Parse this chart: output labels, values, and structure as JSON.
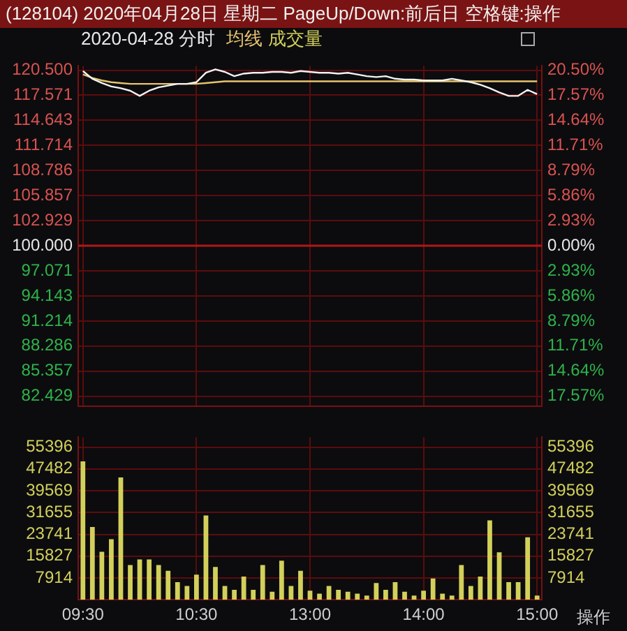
{
  "chart_data": [
    {
      "type": "line",
      "title": "(128104) 2020年04月28日 星期二 PageUp/Down:前后日 空格键:操作",
      "subtitle": "2020-04-28 分时",
      "categories": [
        null,
        null,
        null,
        null,
        null,
        null,
        null,
        null,
        null,
        null,
        null,
        null,
        null,
        null,
        null,
        null,
        null,
        null,
        null,
        null,
        null,
        null,
        null,
        null,
        null,
        null,
        null,
        null,
        null,
        null,
        null,
        null,
        null,
        null,
        null,
        null,
        null,
        null,
        null,
        null,
        null,
        null,
        null,
        null,
        null,
        null,
        null,
        null,
        null
      ],
      "series": [
        {
          "type": "line",
          "color": "#f2f2f2",
          "values": [
            120.4,
            119.5,
            119.0,
            118.6,
            118.4,
            118.1,
            117.5,
            118.1,
            118.5,
            118.7,
            118.9,
            118.9,
            119.1,
            120.2,
            120.6,
            120.3,
            119.8,
            120.1,
            120.2,
            120.2,
            120.3,
            120.3,
            120.2,
            120.4,
            120.3,
            120.2,
            120.2,
            120.1,
            120.2,
            120.0,
            119.8,
            119.7,
            119.8,
            119.5,
            119.4,
            119.4,
            119.3,
            119.3,
            119.3,
            119.5,
            119.3,
            119.1,
            118.8,
            118.4,
            117.9,
            117.5,
            117.5,
            118.2,
            117.7
          ]
        },
        {
          "type": "line",
          "name": "均线",
          "color": "#e6c46e",
          "values": [
            120.0,
            119.6,
            119.3,
            119.1,
            119.0,
            118.9,
            118.9,
            118.9,
            118.9,
            118.9,
            118.9,
            118.9,
            118.9,
            119.0,
            119.1,
            119.2,
            119.2,
            119.2,
            119.2,
            119.2,
            119.2,
            119.2,
            119.2,
            119.2,
            119.2,
            119.2,
            119.2,
            119.2,
            119.2,
            119.2,
            119.2,
            119.2,
            119.2,
            119.2,
            119.2,
            119.2,
            119.2,
            119.2,
            119.2,
            119.2,
            119.2,
            119.2,
            119.2,
            119.2,
            119.2,
            119.2,
            119.2,
            119.2,
            119.2
          ]
        }
      ],
      "ylim": [
        81.3,
        121.0
      ],
      "yticks": [
        {
          "value": 120.5,
          "label": "120.500"
        },
        117.571,
        114.643,
        111.714,
        108.786,
        105.857,
        102.929,
        {
          "value": 100,
          "label": "100.000"
        },
        97.071,
        94.143,
        91.214,
        88.286,
        85.357,
        82.429
      ],
      "y2lim": [
        -18.7,
        21.0
      ],
      "y2ticks": [
        {
          "value": 20.5,
          "label": "20.50%"
        },
        {
          "value": 17.57,
          "label": "17.57%"
        },
        {
          "value": 14.64,
          "label": "14.64%"
        },
        {
          "value": 11.71,
          "label": "11.71%"
        },
        {
          "value": 8.79,
          "label": "8.79%"
        },
        {
          "value": 5.86,
          "label": "5.86%"
        },
        {
          "value": 2.93,
          "label": "2.93%"
        },
        {
          "value": 0,
          "label": "0.00%"
        },
        {
          "value": -2.93,
          "label": "2.93%"
        },
        {
          "value": -5.86,
          "label": "5.86%"
        },
        {
          "value": -8.79,
          "label": "8.79%"
        },
        {
          "value": -11.71,
          "label": "11.71%"
        },
        {
          "value": -14.64,
          "label": "14.64%"
        },
        {
          "value": -17.57,
          "label": "17.57%"
        }
      ],
      "ref_lines": [
        {
          "axis": "y",
          "value": 100,
          "color": "#b01818"
        }
      ],
      "grid": true,
      "legend": "top left",
      "tick_labels": "y"
    },
    {
      "type": "bar",
      "categories": [
        "09:30",
        null,
        null,
        null,
        null,
        null,
        null,
        null,
        null,
        null,
        null,
        null,
        "10:30",
        null,
        null,
        null,
        null,
        null,
        null,
        null,
        null,
        null,
        null,
        null,
        "13:00",
        null,
        null,
        null,
        null,
        null,
        null,
        null,
        null,
        null,
        null,
        null,
        "14:00",
        null,
        null,
        null,
        null,
        null,
        null,
        null,
        null,
        null,
        null,
        null,
        "15:00"
      ],
      "series": [
        {
          "type": "bar",
          "name": "成交量",
          "color": "#d2d05a",
          "values": [
            50200,
            26400,
            17400,
            22000,
            44400,
            12600,
            14600,
            14600,
            12600,
            10500,
            6400,
            5000,
            9100,
            30600,
            11900,
            5000,
            3600,
            8400,
            3600,
            12600,
            2900,
            14200,
            5000,
            10500,
            3300,
            2200,
            5000,
            3600,
            2900,
            2200,
            1500,
            6100,
            3600,
            6400,
            2900,
            1500,
            3300,
            7700,
            2200,
            1500,
            12600,
            5000,
            8400,
            28800,
            17200,
            6400,
            6400,
            22700,
            1500
          ]
        }
      ],
      "ylim": [
        0,
        59000
      ],
      "yticks": [
        7914,
        15827,
        23741,
        31655,
        39569,
        47482,
        55396
      ],
      "y2lim": [
        0,
        59000
      ],
      "y2ticks": [
        7914,
        15827,
        23741,
        31655,
        39569,
        47482,
        55396
      ],
      "grid": true,
      "annotations": [
        "操作"
      ]
    }
  ]
}
